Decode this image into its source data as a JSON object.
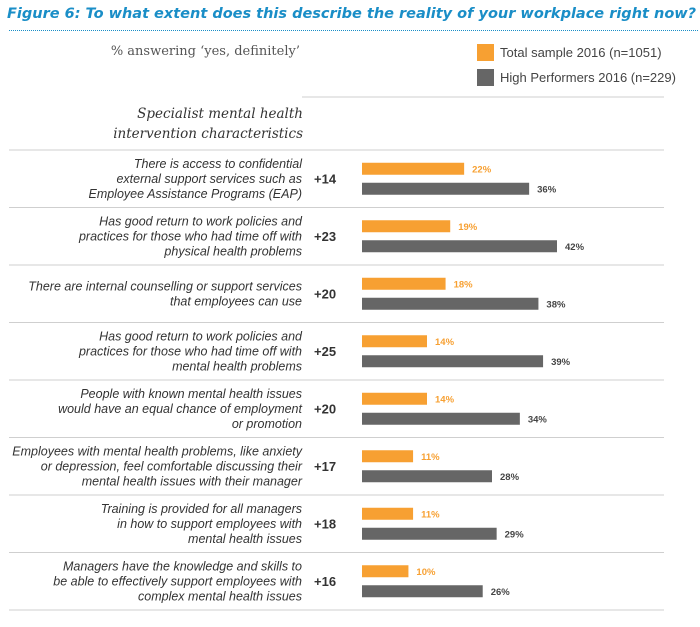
{
  "figure": {
    "title": "Figure 6:  To what extent does this describe the reality of your workplace right now?",
    "subtitle": "% answering ‘yes, definitely’",
    "section_header": "Specialist mental health intervention characteristics"
  },
  "legend": [
    {
      "label": "Total sample 2016 (n=1051)",
      "color": "#f7a032"
    },
    {
      "label": "High Performers 2016 (n=229)",
      "color": "#666666"
    }
  ],
  "chart_data": {
    "type": "bar",
    "orientation": "horizontal",
    "categories": [
      "There is access to confidential external support services such as Employee Assistance Programs (EAP)",
      "Has good return to work policies and practices for those who had time off with physical health problems",
      "There are internal counselling or support services that employees can use",
      "Has good return to work policies and practices for those who had time off with mental health problems",
      "People with known mental health issues would have an equal chance of employment or promotion",
      "Employees with mental health problems, like anxiety or depression, feel comfortable discussing their mental health issues with their manager",
      "Training is provided for all managers in how to support employees with mental health issues",
      "Managers have the knowledge and skills to be able to effectively support employees with complex mental health issues"
    ],
    "category_lines": [
      [
        "There is access to confidential",
        "external support services such as",
        "Employee Assistance Programs (EAP)"
      ],
      [
        "Has good return to work policies and",
        "practices for those who had time off with",
        "physical health problems"
      ],
      [
        "There are internal counselling or support services",
        "that employees can use"
      ],
      [
        "Has good return to work policies and",
        "practices for those who had time off with",
        "mental health problems"
      ],
      [
        "People with known mental health issues",
        "would have an equal chance of employment",
        "or promotion"
      ],
      [
        "Employees with mental health problems, like anxiety",
        "or depression, feel comfortable discussing their",
        "mental health issues with their manager"
      ],
      [
        "Training is provided for all managers",
        "in how to support employees with",
        "mental health issues"
      ],
      [
        "Managers have the knowledge and skills to",
        "be able to effectively support employees with",
        "complex mental health issues"
      ]
    ],
    "series": [
      {
        "name": "Total sample 2016 (n=1051)",
        "values": [
          22,
          19,
          18,
          14,
          14,
          11,
          11,
          10
        ],
        "color": "#f7a032"
      },
      {
        "name": "High Performers 2016 (n=229)",
        "values": [
          36,
          42,
          38,
          39,
          34,
          28,
          29,
          26
        ],
        "color": "#666666"
      }
    ],
    "differences": [
      "+14",
      "+23",
      "+20",
      "+25",
      "+20",
      "+17",
      "+18",
      "+16"
    ],
    "value_suffix": "%",
    "xlim": [
      0,
      42
    ],
    "grid": false
  }
}
